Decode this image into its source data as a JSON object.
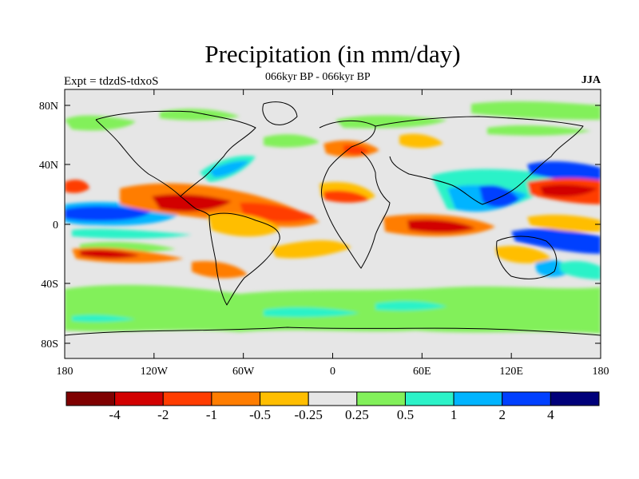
{
  "title": "Precipitation (in mm/day)",
  "left_label": "Expt = tdzdS-tdxoS",
  "center_label": "066kyr BP - 066kyr BP",
  "right_label": "JJA",
  "lat_ticks": [
    "80N",
    "40N",
    "0",
    "40S",
    "80S"
  ],
  "lon_ticks": [
    "180",
    "120W",
    "60W",
    "0",
    "60E",
    "120E",
    "180"
  ],
  "colorbar": {
    "colors": [
      "#7f0000",
      "#d20000",
      "#ff3c00",
      "#ff7d00",
      "#ffbe00",
      "#e6e6e6",
      "#82f05a",
      "#2cf2c8",
      "#00b4ff",
      "#0040ff",
      "#00007a"
    ],
    "labels": [
      "-4",
      "-2",
      "-1",
      "-0.5",
      "-0.25",
      "0.25",
      "0.5",
      "1",
      "2",
      "4"
    ]
  },
  "map": {
    "background": "#e6e6e6",
    "projection": "cylindrical equidistant",
    "lon_range": [
      -180,
      180
    ],
    "lat_range": [
      -90,
      90
    ]
  }
}
